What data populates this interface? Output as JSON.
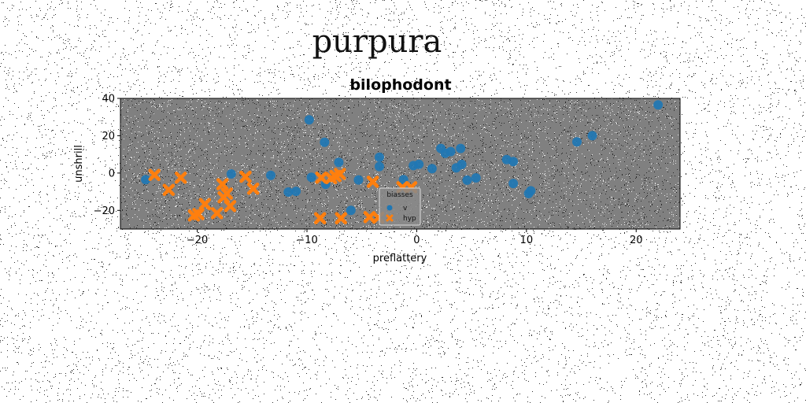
{
  "chart_data": {
    "type": "scatter",
    "suptitle": "purpura",
    "title": "bilophodont",
    "xlabel": "preflattery",
    "ylabel": "unshrill",
    "xlim": [
      -27,
      24
    ],
    "ylim": [
      -30,
      40
    ],
    "xticks": [
      -20,
      -10,
      0,
      10,
      20
    ],
    "yticks": [
      -20,
      0,
      20,
      40
    ],
    "grid": false,
    "legend": {
      "title": "biasses",
      "placement": "lower-center",
      "entries": [
        {
          "label": "v",
          "series": 0
        },
        {
          "label": "hyp",
          "series": 1
        }
      ]
    },
    "series": [
      {
        "name": "v",
        "marker": "circle",
        "color": "#1f77b4",
        "points": [
          [
            -24.7,
            -3.5
          ],
          [
            -16.9,
            -0.5
          ],
          [
            -13.3,
            -1.2
          ],
          [
            -11.7,
            -10.2
          ],
          [
            -11.0,
            -9.8
          ],
          [
            -9.8,
            28.5
          ],
          [
            -9.6,
            -2.3
          ],
          [
            -8.4,
            16.5
          ],
          [
            -8.3,
            -6.0
          ],
          [
            -7.1,
            5.7
          ],
          [
            -6.0,
            -20.0
          ],
          [
            -5.3,
            -3.7
          ],
          [
            -3.4,
            8.5
          ],
          [
            -3.4,
            3.5
          ],
          [
            -1.2,
            -3.5
          ],
          [
            -0.3,
            4.0
          ],
          [
            0.2,
            4.7
          ],
          [
            1.4,
            2.4
          ],
          [
            2.2,
            13.2
          ],
          [
            2.6,
            10.6
          ],
          [
            3.1,
            11.5
          ],
          [
            3.6,
            2.8
          ],
          [
            4.0,
            13.2
          ],
          [
            4.1,
            4.6
          ],
          [
            4.6,
            -3.8
          ],
          [
            5.4,
            -2.6
          ],
          [
            8.2,
            7.2
          ],
          [
            8.8,
            6.2
          ],
          [
            8.8,
            -5.6
          ],
          [
            10.2,
            -11.0
          ],
          [
            10.4,
            -9.5
          ],
          [
            14.6,
            16.7
          ],
          [
            16.0,
            20.0
          ],
          [
            22.0,
            36.5
          ]
        ]
      },
      {
        "name": "hyp",
        "marker": "x",
        "color": "#ff7f0e",
        "points": [
          [
            -23.9,
            -1.0
          ],
          [
            -22.6,
            -9.0
          ],
          [
            -21.5,
            -2.5
          ],
          [
            -20.3,
            -22.7
          ],
          [
            -19.9,
            -22.0
          ],
          [
            -19.3,
            -16.6
          ],
          [
            -18.2,
            -21.5
          ],
          [
            -17.7,
            -6.0
          ],
          [
            -17.6,
            -13.0
          ],
          [
            -17.3,
            -11.0
          ],
          [
            -17.0,
            -17.7
          ],
          [
            -15.6,
            -2.0
          ],
          [
            -14.9,
            -8.4
          ],
          [
            -8.8,
            -24.2
          ],
          [
            -8.7,
            -2.5
          ],
          [
            -7.8,
            -2.7
          ],
          [
            -7.4,
            -1.6
          ],
          [
            -7.0,
            -0.5
          ],
          [
            -6.9,
            -24.2
          ],
          [
            -4.3,
            -23.6
          ],
          [
            -4.0,
            -4.7
          ],
          [
            -3.5,
            -23.9
          ],
          [
            -1.3,
            -7.6
          ],
          [
            -0.5,
            -7.6
          ]
        ]
      }
    ]
  }
}
